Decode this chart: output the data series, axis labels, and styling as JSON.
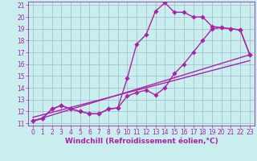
{
  "xlabel": "Windchill (Refroidissement éolien,°C)",
  "xlim": [
    0,
    23
  ],
  "ylim": [
    11,
    21
  ],
  "xticks": [
    0,
    1,
    2,
    3,
    4,
    5,
    6,
    7,
    8,
    9,
    10,
    11,
    12,
    13,
    14,
    15,
    16,
    17,
    18,
    19,
    20,
    21,
    22,
    23
  ],
  "yticks": [
    11,
    12,
    13,
    14,
    15,
    16,
    17,
    18,
    19,
    20,
    21
  ],
  "bg_color": "#c8eeee",
  "grid_color": "#a0b8c8",
  "line_color": "#aa22aa",
  "line1_x": [
    0,
    1,
    2,
    3,
    4,
    5,
    6,
    7,
    8,
    9,
    10,
    11,
    12,
    13,
    14,
    15,
    16,
    17,
    18,
    19,
    20,
    21,
    22,
    23
  ],
  "line1_y": [
    11.2,
    11.4,
    12.2,
    12.5,
    12.2,
    12.0,
    11.8,
    11.8,
    12.2,
    12.3,
    13.3,
    13.6,
    13.8,
    13.4,
    14.0,
    15.2,
    16.0,
    17.0,
    18.0,
    19.0,
    19.1,
    19.0,
    18.9,
    16.8
  ],
  "line2_x": [
    0,
    1,
    2,
    3,
    4,
    5,
    6,
    7,
    8,
    9,
    10,
    11,
    12,
    13,
    14,
    15,
    16,
    17,
    18,
    19,
    20,
    21,
    22,
    23
  ],
  "line2_y": [
    11.2,
    11.4,
    12.2,
    12.5,
    12.2,
    12.0,
    11.8,
    11.8,
    12.2,
    12.3,
    14.8,
    17.7,
    18.5,
    20.5,
    21.2,
    20.4,
    20.4,
    20.0,
    20.0,
    19.2,
    19.1,
    19.0,
    18.9,
    16.8
  ],
  "line3_x": [
    0,
    23
  ],
  "line3_y": [
    11.2,
    16.8
  ],
  "line4_x": [
    0,
    23
  ],
  "line4_y": [
    11.5,
    16.3
  ],
  "markersize": 2.8,
  "linewidth": 1.0,
  "xlabel_fontsize": 6.5,
  "tick_fontsize": 5.5
}
